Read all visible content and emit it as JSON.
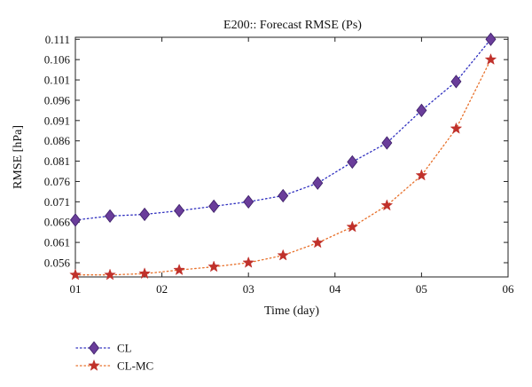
{
  "chart_data": {
    "type": "line",
    "title": "E200:: Forecast RMSE (Ps)",
    "xlabel": "Time (day)",
    "ylabel": "RMSE [hPa]",
    "xlim": [
      1,
      6
    ],
    "ylim": [
      0.0525,
      0.1115
    ],
    "x_ticks": [
      {
        "value": 1,
        "label": "01"
      },
      {
        "value": 2,
        "label": "02"
      },
      {
        "value": 3,
        "label": "03"
      },
      {
        "value": 4,
        "label": "04"
      },
      {
        "value": 5,
        "label": "05"
      },
      {
        "value": 6,
        "label": "06"
      }
    ],
    "y_ticks": [
      {
        "value": 0.056,
        "label": "0.056"
      },
      {
        "value": 0.061,
        "label": "0.061"
      },
      {
        "value": 0.066,
        "label": "0.066"
      },
      {
        "value": 0.071,
        "label": "0.071"
      },
      {
        "value": 0.076,
        "label": "0.076"
      },
      {
        "value": 0.081,
        "label": "0.081"
      },
      {
        "value": 0.086,
        "label": "0.086"
      },
      {
        "value": 0.091,
        "label": "0.091"
      },
      {
        "value": 0.096,
        "label": "0.096"
      },
      {
        "value": 0.101,
        "label": "0.101"
      },
      {
        "value": 0.106,
        "label": "0.106"
      },
      {
        "value": 0.111,
        "label": "0.111"
      }
    ],
    "grid": false,
    "legend_position": "bottom-left, below plot",
    "x": [
      1.0,
      1.4,
      1.8,
      2.2,
      2.6,
      3.0,
      3.4,
      3.8,
      4.2,
      4.6,
      5.0,
      5.4,
      5.8
    ],
    "series": [
      {
        "name": "CL",
        "color": "#6a3d9a",
        "line_color": "#2f2fbf",
        "marker": "diamond",
        "values": [
          0.0665,
          0.0675,
          0.0679,
          0.0688,
          0.0699,
          0.071,
          0.0725,
          0.0756,
          0.0808,
          0.0855,
          0.0935,
          0.1006,
          0.111
        ]
      },
      {
        "name": "CL-MC",
        "color": "#c0312b",
        "line_color": "#e8702a",
        "marker": "star",
        "values": [
          0.053,
          0.053,
          0.0533,
          0.0542,
          0.055,
          0.056,
          0.0578,
          0.0609,
          0.0648,
          0.0701,
          0.0775,
          0.089,
          0.106
        ]
      }
    ]
  }
}
